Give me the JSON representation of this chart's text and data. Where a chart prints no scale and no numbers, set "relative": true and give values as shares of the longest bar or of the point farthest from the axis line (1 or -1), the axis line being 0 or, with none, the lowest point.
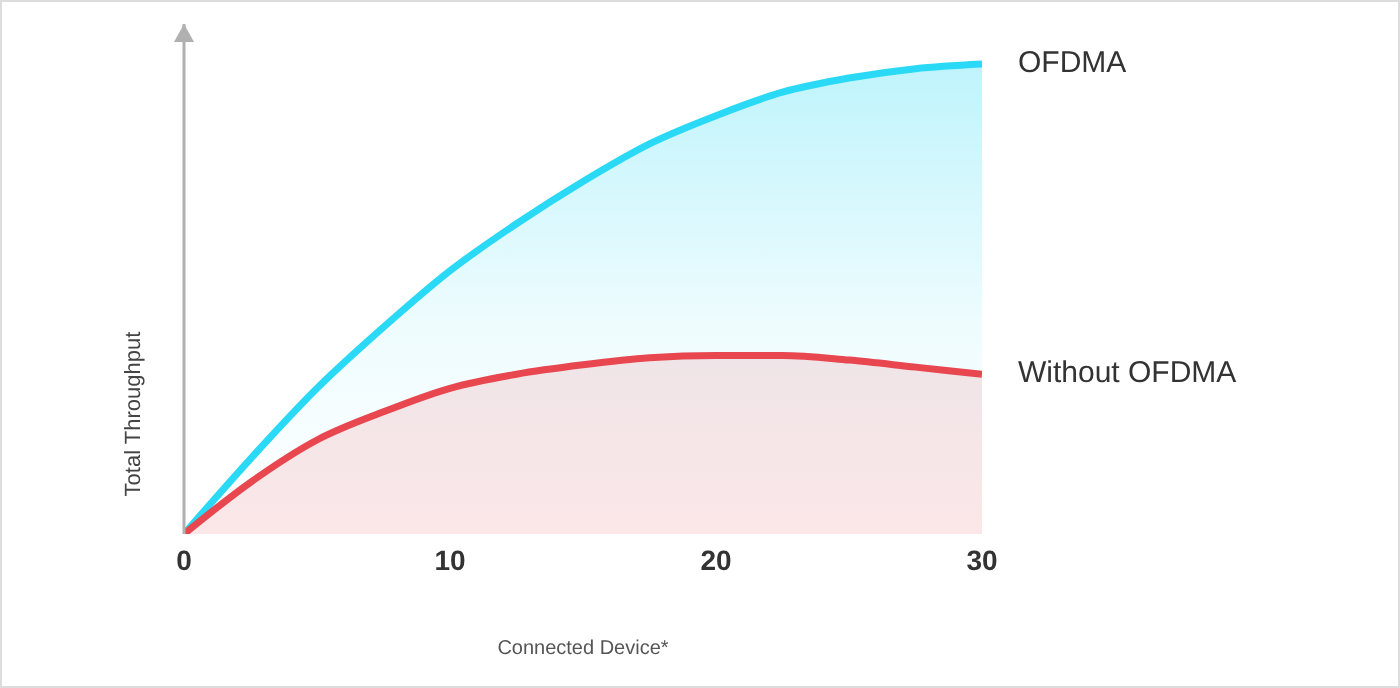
{
  "chart_data": {
    "type": "area",
    "relative": true,
    "xlabel": "Connected Device*",
    "ylabel": "Total Throughput",
    "x": [
      0,
      2.5,
      5,
      7.5,
      10,
      12.5,
      15,
      17.5,
      20,
      22.5,
      25,
      27.5,
      30
    ],
    "xlim": [
      0,
      30
    ],
    "xticks": [
      0,
      10,
      20,
      30
    ],
    "grid": false,
    "legend": false,
    "tick_labels": "x",
    "series": [
      {
        "name": "OFDMA",
        "color": "#29d9f5",
        "values": [
          0,
          0.16,
          0.31,
          0.44,
          0.56,
          0.66,
          0.75,
          0.83,
          0.89,
          0.94,
          0.97,
          0.99,
          1
        ]
      },
      {
        "name": "Without OFDMA",
        "color": "#e8474f",
        "values": [
          0,
          0.11,
          0.2,
          0.26,
          0.31,
          0.34,
          0.36,
          0.375,
          0.38,
          0.38,
          0.37,
          0.355,
          0.34
        ]
      }
    ]
  }
}
